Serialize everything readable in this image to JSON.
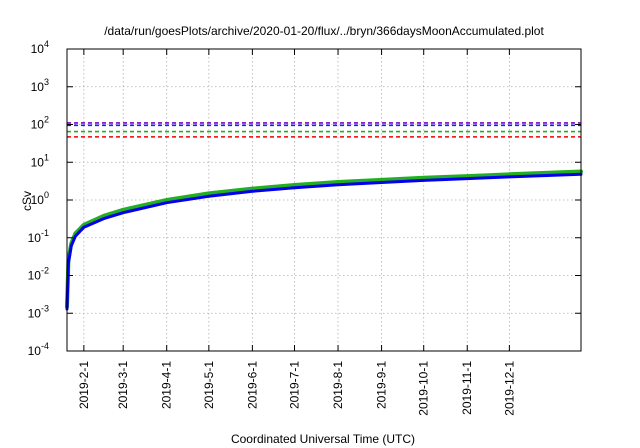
{
  "chart_data": {
    "type": "line",
    "title": "/data/run/goesPlots/archive/2020-01-20/flux/../bryn/366daysMoonAccumulated.plot",
    "xlabel": "Coordinated Universal Time (UTC)",
    "ylabel": "cSv",
    "yscale": "log",
    "ylim": [
      0.0001,
      10000
    ],
    "xlim": [
      "2019-01-20",
      "2020-01-21"
    ],
    "grid": true,
    "y_ticks": [
      {
        "value": 0.0001,
        "base": "10",
        "exp": "-4"
      },
      {
        "value": 0.001,
        "base": "10",
        "exp": "-3"
      },
      {
        "value": 0.01,
        "base": "10",
        "exp": "-2"
      },
      {
        "value": 0.1,
        "base": "10",
        "exp": "-1"
      },
      {
        "value": 1,
        "base": "10",
        "exp": "0"
      },
      {
        "value": 10,
        "base": "10",
        "exp": "1"
      },
      {
        "value": 100,
        "base": "10",
        "exp": "2"
      },
      {
        "value": 1000,
        "base": "10",
        "exp": "3"
      },
      {
        "value": 10000,
        "base": "10",
        "exp": "4"
      }
    ],
    "x_ticks": [
      "2019-2-1",
      "2019-3-1",
      "2019-4-1",
      "2019-5-1",
      "2019-6-1",
      "2019-7-1",
      "2019-8-1",
      "2019-9-1",
      "2019-10-1",
      "2019-11-1",
      "2019-12-1"
    ],
    "x_tick_dates": [
      "2019-02-01",
      "2019-03-01",
      "2019-04-01",
      "2019-05-01",
      "2019-06-01",
      "2019-07-01",
      "2019-08-01",
      "2019-09-01",
      "2019-10-01",
      "2019-11-01",
      "2019-12-01"
    ],
    "limit_lines": [
      {
        "value": 110,
        "color": "#8000c0",
        "dash": true
      },
      {
        "value": 95,
        "color": "#1a1aff",
        "dash": true
      },
      {
        "value": 65,
        "color": "#22b022",
        "dash": true
      },
      {
        "value": 47,
        "color": "#ee0000",
        "dash": true
      }
    ],
    "series": [
      {
        "color": "#22b022",
        "x": [
          "2019-01-20",
          "2019-01-21",
          "2019-01-23",
          "2019-01-26",
          "2019-02-01",
          "2019-02-15",
          "2019-03-01",
          "2019-04-01",
          "2019-05-01",
          "2019-06-01",
          "2019-07-01",
          "2019-08-01",
          "2019-09-01",
          "2019-10-01",
          "2019-11-01",
          "2019-12-01",
          "2020-01-21"
        ],
        "y": [
          0.0015,
          0.025,
          0.07,
          0.13,
          0.22,
          0.38,
          0.55,
          1.0,
          1.5,
          2.0,
          2.5,
          3.0,
          3.4,
          3.9,
          4.3,
          4.8,
          5.7
        ]
      },
      {
        "color": "#0000ee",
        "x": [
          "2019-01-20",
          "2019-01-21",
          "2019-01-23",
          "2019-01-26",
          "2019-02-01",
          "2019-02-15",
          "2019-03-01",
          "2019-04-01",
          "2019-05-01",
          "2019-06-01",
          "2019-07-01",
          "2019-08-01",
          "2019-09-01",
          "2019-10-01",
          "2019-11-01",
          "2019-12-01",
          "2020-01-21"
        ],
        "y": [
          0.0013,
          0.021,
          0.06,
          0.11,
          0.19,
          0.32,
          0.46,
          0.85,
          1.25,
          1.7,
          2.1,
          2.55,
          2.9,
          3.3,
          3.7,
          4.1,
          4.8
        ]
      }
    ]
  }
}
